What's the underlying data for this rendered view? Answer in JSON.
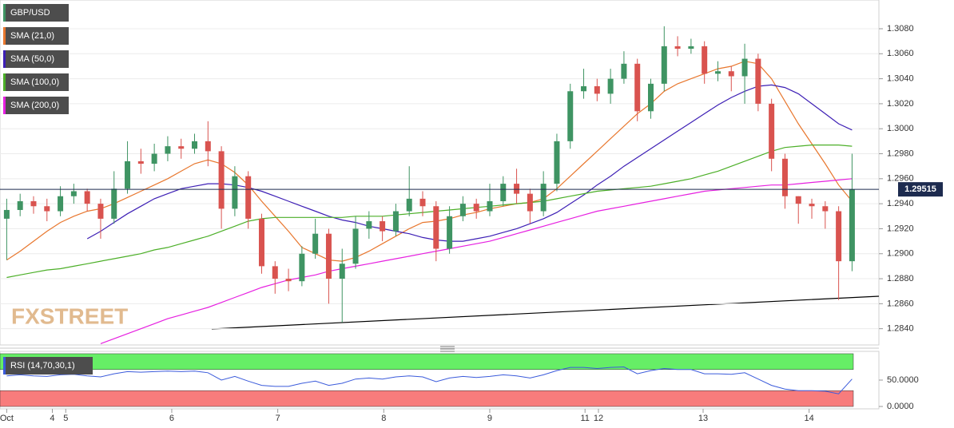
{
  "chart_data": [
    {
      "type": "candlestick",
      "name": "GBP/USD",
      "up_color": "#3f9463",
      "down_color": "#d9534f",
      "open": [
        1.2928,
        1.2935,
        1.2942,
        1.2938,
        1.2934,
        1.2946,
        1.295,
        1.294,
        1.2928,
        1.2952,
        1.2974,
        1.2972,
        1.298,
        1.2986,
        1.2984,
        1.299,
        1.2982,
        1.2936,
        1.2962,
        1.2928,
        1.289,
        1.288,
        1.2878,
        1.29,
        1.2916,
        1.288,
        1.2892,
        1.292,
        1.2926,
        1.2918,
        1.2934,
        1.2944,
        1.2938,
        1.2904,
        1.293,
        1.294,
        1.2934,
        1.2942,
        1.2956,
        1.2948,
        1.2934,
        1.2956,
        1.299,
        1.303,
        1.3034,
        1.3028,
        1.304,
        1.3052,
        1.3014,
        1.3036,
        1.3066,
        1.3064,
        1.3066,
        1.3044,
        1.3046,
        1.3042,
        1.3056,
        1.302,
        1.2976,
        1.2946,
        1.294,
        1.2938,
        1.2934,
        1.2894
      ],
      "high": [
        1.2944,
        1.2948,
        1.2946,
        1.2944,
        1.2954,
        1.2956,
        1.2952,
        1.2944,
        1.2966,
        1.299,
        1.2984,
        1.2988,
        1.2994,
        1.2992,
        1.2996,
        1.3006,
        1.2986,
        1.297,
        1.2966,
        1.2932,
        1.2894,
        1.2888,
        1.2906,
        1.2928,
        1.292,
        1.2904,
        1.293,
        1.2934,
        1.293,
        1.294,
        1.297,
        1.295,
        1.2942,
        1.2938,
        1.2946,
        1.2944,
        1.2956,
        1.2962,
        1.2968,
        1.2952,
        1.2966,
        1.2996,
        1.3036,
        1.3048,
        1.304,
        1.3048,
        1.3062,
        1.3056,
        1.304,
        1.3082,
        1.3074,
        1.3072,
        1.307,
        1.3054,
        1.305,
        1.3068,
        1.306,
        1.3024,
        1.298,
        1.2946,
        1.2944,
        1.2942,
        1.2938,
        1.298
      ],
      "low": [
        1.2895,
        1.293,
        1.2932,
        1.2926,
        1.293,
        1.294,
        1.2934,
        1.2912,
        1.2924,
        1.2948,
        1.2964,
        1.2966,
        1.2974,
        1.2976,
        1.298,
        1.297,
        1.292,
        1.293,
        1.292,
        1.2884,
        1.2868,
        1.287,
        1.2874,
        1.2896,
        1.286,
        1.2845,
        1.2888,
        1.2912,
        1.291,
        1.2914,
        1.293,
        1.293,
        1.2894,
        1.29,
        1.2926,
        1.2928,
        1.293,
        1.2938,
        1.294,
        1.2924,
        1.293,
        1.295,
        1.2984,
        1.3024,
        1.3022,
        1.302,
        1.3036,
        1.3006,
        1.3008,
        1.303,
        1.3058,
        1.306,
        1.3036,
        1.3038,
        1.303,
        1.302,
        1.3014,
        1.2966,
        1.2936,
        1.2924,
        1.2928,
        1.292,
        1.2863,
        1.2886
      ],
      "close": [
        1.2935,
        1.2942,
        1.2938,
        1.2934,
        1.2946,
        1.295,
        1.294,
        1.2928,
        1.2952,
        1.2974,
        1.2972,
        1.298,
        1.2986,
        1.2984,
        1.299,
        1.2982,
        1.2936,
        1.2962,
        1.2928,
        1.289,
        1.288,
        1.2878,
        1.29,
        1.2916,
        1.288,
        1.2892,
        1.292,
        1.2926,
        1.2918,
        1.2934,
        1.2944,
        1.2938,
        1.2904,
        1.293,
        1.294,
        1.2934,
        1.2942,
        1.2956,
        1.2948,
        1.2934,
        1.2956,
        1.299,
        1.303,
        1.3034,
        1.3028,
        1.304,
        1.3052,
        1.3014,
        1.3036,
        1.3066,
        1.3064,
        1.3066,
        1.3044,
        1.3046,
        1.3042,
        1.3056,
        1.302,
        1.2976,
        1.2946,
        1.294,
        1.2938,
        1.2934,
        1.2894,
        1.29515
      ],
      "lines": [
        {
          "name": "SMA (21,0)",
          "color": "#e8772e",
          "values": [
            1.2895,
            1.2902,
            1.291,
            1.2918,
            1.2925,
            1.293,
            1.2934,
            1.2936,
            1.294,
            1.2945,
            1.295,
            1.2955,
            1.296,
            1.2966,
            1.2972,
            1.2975,
            1.2972,
            1.2965,
            1.2955,
            1.2942,
            1.293,
            1.2918,
            1.2905,
            1.29,
            1.2895,
            1.2894,
            1.2897,
            1.2902,
            1.2908,
            1.2914,
            1.292,
            1.2925,
            1.2926,
            1.2928,
            1.2931,
            1.2933,
            1.2936,
            1.2938,
            1.294,
            1.2941,
            1.2944,
            1.2952,
            1.2962,
            1.2972,
            1.2982,
            1.2992,
            1.3002,
            1.3012,
            1.302,
            1.303,
            1.3036,
            1.304,
            1.3044,
            1.3048,
            1.305,
            1.3054,
            1.3052,
            1.304,
            1.3022,
            1.3004,
            1.2988,
            1.2972,
            1.2955,
            1.2942
          ]
        },
        {
          "name": "SMA (50,0)",
          "color": "#3d1fb5",
          "values": [
            null,
            null,
            null,
            null,
            null,
            null,
            1.2912,
            1.2918,
            1.2925,
            1.2932,
            1.2938,
            1.2944,
            1.2948,
            1.2952,
            1.2954,
            1.2956,
            1.2956,
            1.2955,
            1.2953,
            1.295,
            1.2946,
            1.2942,
            1.2938,
            1.2934,
            1.293,
            1.2927,
            1.2925,
            1.2922,
            1.292,
            1.2918,
            1.2916,
            1.2913,
            1.2911,
            1.291,
            1.291,
            1.2912,
            1.2914,
            1.2917,
            1.292,
            1.2924,
            1.2928,
            1.2933,
            1.294,
            1.2947,
            1.2955,
            1.2962,
            1.297,
            1.2977,
            1.2984,
            1.2991,
            1.2998,
            1.3005,
            1.3012,
            1.3019,
            1.3025,
            1.303,
            1.3034,
            1.3035,
            1.3033,
            1.3028,
            1.302,
            1.3012,
            1.3004,
            1.2999
          ]
        },
        {
          "name": "SMA (100,0)",
          "color": "#4caf28",
          "values": [
            1.2881,
            1.2883,
            1.2885,
            1.2887,
            1.2888,
            1.289,
            1.2892,
            1.2894,
            1.2896,
            1.2898,
            1.29,
            1.2903,
            1.2905,
            1.2908,
            1.2911,
            1.2914,
            1.2918,
            1.2922,
            1.2926,
            1.2928,
            1.2929,
            1.2929,
            1.2929,
            1.2929,
            1.2929,
            1.2929,
            1.293,
            1.293,
            1.293,
            1.2931,
            1.2932,
            1.2933,
            1.2934,
            1.2935,
            1.2936,
            1.2937,
            1.2938,
            1.2939,
            1.294,
            1.2941,
            1.2942,
            1.2944,
            1.2946,
            1.2948,
            1.295,
            1.2951,
            1.2952,
            1.2953,
            1.2954,
            1.2956,
            1.2958,
            1.296,
            1.2963,
            1.2966,
            1.297,
            1.2974,
            1.2978,
            1.2982,
            1.2985,
            1.2986,
            1.2987,
            1.2987,
            1.2987,
            1.2986
          ]
        },
        {
          "name": "SMA (200,0)",
          "color": "#e620e0",
          "values": [
            null,
            null,
            null,
            null,
            null,
            null,
            null,
            1.2828,
            1.2832,
            1.2836,
            1.284,
            1.2844,
            1.2848,
            1.2851,
            1.2854,
            1.2857,
            1.2861,
            1.2865,
            1.2869,
            1.2873,
            1.2876,
            1.2879,
            1.2881,
            1.2883,
            1.2886,
            1.2888,
            1.289,
            1.2892,
            1.2894,
            1.2896,
            1.2898,
            1.29,
            1.2902,
            1.2904,
            1.2906,
            1.2908,
            1.291,
            1.2913,
            1.2916,
            1.2919,
            1.2922,
            1.2925,
            1.2928,
            1.2931,
            1.2934,
            1.2936,
            1.2938,
            1.294,
            1.2942,
            1.2944,
            1.2946,
            1.2948,
            1.295,
            1.2951,
            1.2952,
            1.2953,
            1.2954,
            1.2955,
            1.2955,
            1.2956,
            1.2957,
            1.2958,
            1.2959,
            1.296
          ]
        }
      ],
      "last_price": 1.29515,
      "last_price_color": "#1d2b4f",
      "xlim": [
        -0.5,
        65
      ],
      "ylim": [
        1.2827,
        1.3103
      ],
      "yticks": [
        {
          "value": 1.284,
          "label": "1.2840"
        },
        {
          "value": 1.286,
          "label": "1.2860"
        },
        {
          "value": 1.288,
          "label": "1.2880"
        },
        {
          "value": 1.29,
          "label": "1.2900"
        },
        {
          "value": 1.292,
          "label": "1.2920"
        },
        {
          "value": 1.294,
          "label": "1.2940"
        },
        {
          "value": 1.296,
          "label": "1.2960"
        },
        {
          "value": 1.298,
          "label": "1.2980"
        },
        {
          "value": 1.3,
          "label": "1.3000"
        },
        {
          "value": 1.302,
          "label": "1.3020"
        },
        {
          "value": 1.304,
          "label": "1.3040"
        },
        {
          "value": 1.306,
          "label": "1.3060"
        },
        {
          "value": 1.308,
          "label": "1.3080"
        }
      ],
      "xticks": [
        {
          "value": 0,
          "label": "Oct"
        },
        {
          "value": 3.4,
          "label": "4"
        },
        {
          "value": 4.4,
          "label": "5"
        },
        {
          "value": 12.3,
          "label": "6"
        },
        {
          "value": 20.2,
          "label": "7"
        },
        {
          "value": 28.1,
          "label": "8"
        },
        {
          "value": 36,
          "label": "9"
        },
        {
          "value": 43.1,
          "label": "11"
        },
        {
          "value": 44.1,
          "label": "12"
        },
        {
          "value": 51.9,
          "label": "13"
        },
        {
          "value": 59.8,
          "label": "14"
        }
      ],
      "grid": true,
      "watermark": "FXSTREET"
    },
    {
      "type": "line",
      "name": "RSI (14,70,30,1)",
      "color": "#3b5bdb",
      "values": [
        58,
        60,
        58,
        57,
        60,
        61,
        58,
        56,
        62,
        66,
        65,
        66,
        67,
        66,
        67,
        64,
        50,
        57,
        48,
        40,
        38,
        38,
        44,
        48,
        40,
        44,
        52,
        54,
        52,
        56,
        58,
        56,
        47,
        54,
        57,
        55,
        57,
        60,
        58,
        54,
        60,
        68,
        74,
        74,
        72,
        74,
        75,
        62,
        68,
        72,
        70,
        70,
        62,
        62,
        61,
        64,
        52,
        40,
        33,
        30,
        30,
        29,
        24,
        52
      ],
      "xlim": [
        -0.5,
        65
      ],
      "ylim": [
        -4.5,
        104.5
      ],
      "yticks": [
        {
          "value": 50,
          "label": "50.0000"
        },
        {
          "value": 0,
          "label": "0.0000"
        }
      ],
      "bands": [
        {
          "from": 70,
          "to": 100,
          "color": "#66ee66"
        },
        {
          "from": 0,
          "to": 30,
          "color": "#f87c7c"
        }
      ]
    }
  ]
}
